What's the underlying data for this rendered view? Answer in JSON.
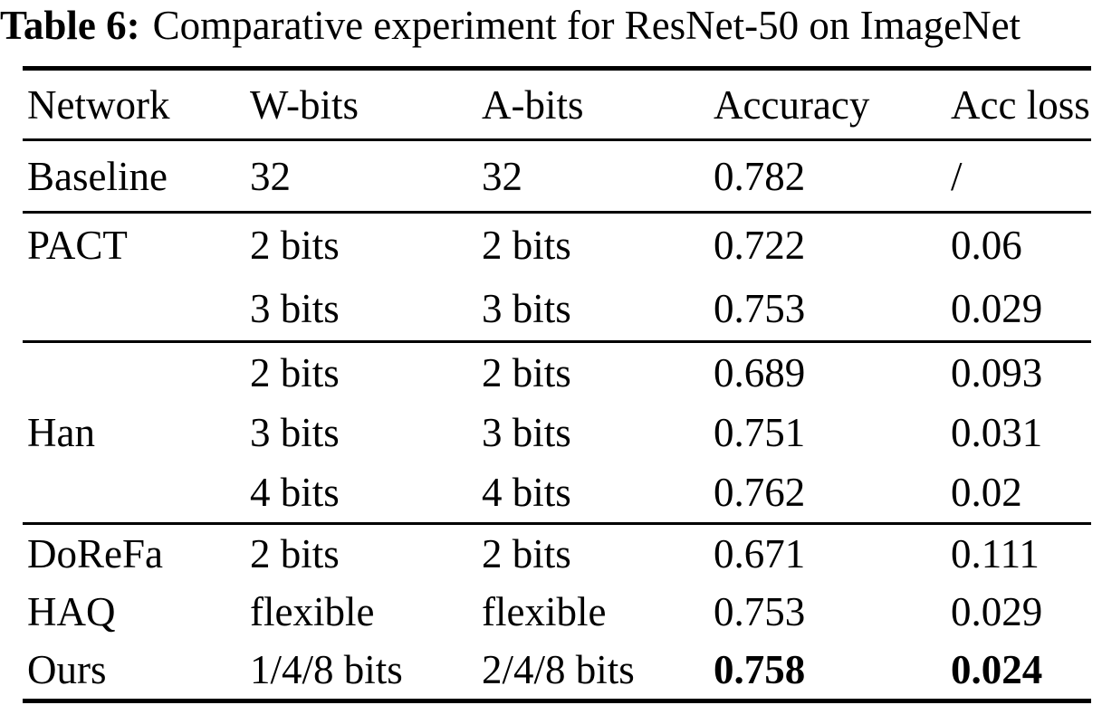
{
  "caption": {
    "label": "Table 6:",
    "text": "Comparative experiment for ResNet-50 on ImageNet"
  },
  "table": {
    "headers": [
      "Network",
      "W-bits",
      "A-bits",
      "Accuracy",
      "Acc loss"
    ],
    "groups": [
      {
        "rows": [
          [
            "Baseline",
            "32",
            "32",
            "0.782",
            "/"
          ]
        ]
      },
      {
        "rows": [
          [
            "PACT",
            "2 bits",
            "2 bits",
            "0.722",
            "0.06"
          ],
          [
            "",
            "3 bits",
            "3 bits",
            "0.753",
            "0.029"
          ]
        ]
      },
      {
        "rows": [
          [
            "",
            "2 bits",
            "2 bits",
            "0.689",
            "0.093"
          ],
          [
            "Han",
            "3 bits",
            "3 bits",
            "0.751",
            "0.031"
          ],
          [
            "",
            "4 bits",
            "4 bits",
            "0.762",
            "0.02"
          ]
        ]
      },
      {
        "rows": [
          [
            "DoReFa",
            "2 bits",
            "2 bits",
            "0.671",
            "0.111"
          ],
          [
            "HAQ",
            "flexible",
            "flexible",
            "0.753",
            "0.029"
          ],
          [
            "Ours",
            "1/4/8 bits",
            "2/4/8 bits",
            "0.758",
            "0.024"
          ]
        ]
      }
    ]
  },
  "chart_data": {
    "type": "table",
    "title": "Table 6: Comparative experiment for ResNet-50 on ImageNet",
    "columns": [
      "Network",
      "W-bits",
      "A-bits",
      "Accuracy",
      "Acc loss"
    ],
    "rows": [
      [
        "Baseline",
        "32",
        "32",
        0.782,
        null
      ],
      [
        "PACT",
        "2 bits",
        "2 bits",
        0.722,
        0.06
      ],
      [
        "PACT",
        "3 bits",
        "3 bits",
        0.753,
        0.029
      ],
      [
        "Han",
        "2 bits",
        "2 bits",
        0.689,
        0.093
      ],
      [
        "Han",
        "3 bits",
        "3 bits",
        0.751,
        0.031
      ],
      [
        "Han",
        "4 bits",
        "4 bits",
        0.762,
        0.02
      ],
      [
        "DoReFa",
        "2 bits",
        "2 bits",
        0.671,
        0.111
      ],
      [
        "HAQ",
        "flexible",
        "flexible",
        0.753,
        0.029
      ],
      [
        "Ours",
        "1/4/8 bits",
        "2/4/8 bits",
        0.758,
        0.024
      ]
    ]
  }
}
